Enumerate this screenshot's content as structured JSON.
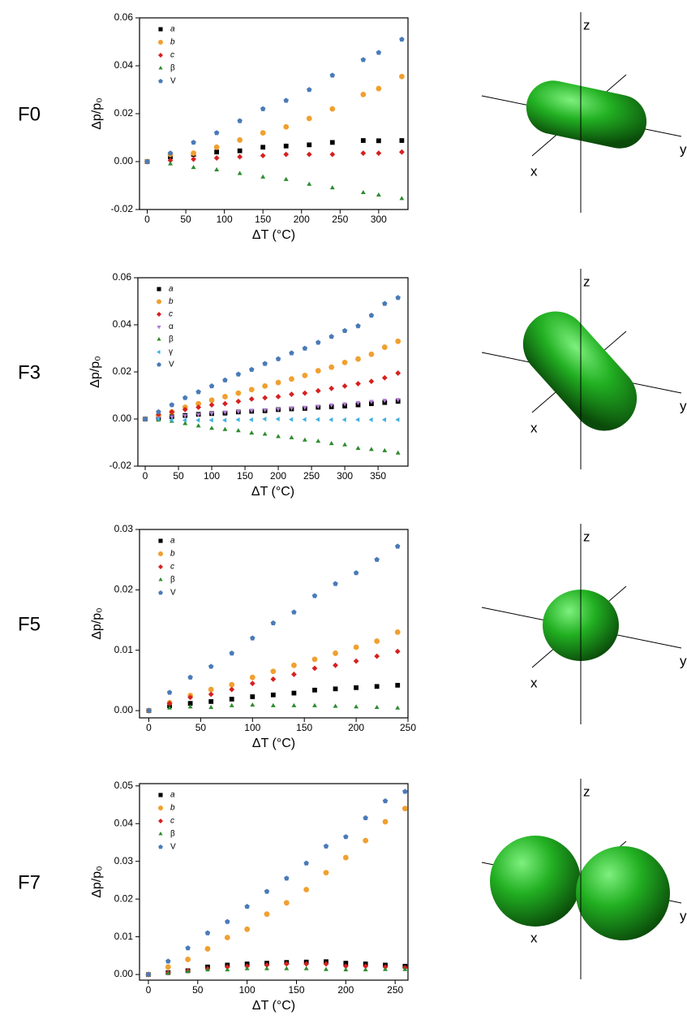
{
  "chart_data": [
    {
      "type": "scatter",
      "label": "F0",
      "xlabel": "ΔT (°C)",
      "ylabel": "Δp/p₀",
      "xlim": [
        -10,
        338
      ],
      "xticks": [
        0,
        50,
        100,
        150,
        200,
        250,
        300
      ],
      "ylim": [
        -0.02,
        0.06
      ],
      "yticks": [
        {
          "value": -0.02,
          "label": "-0.02"
        },
        {
          "value": 0,
          "label": "0.00"
        },
        {
          "value": 0.02,
          "label": "0.02"
        },
        {
          "value": 0.04,
          "label": "0.04"
        },
        {
          "value": 0.06,
          "label": "0.06"
        }
      ],
      "x": [
        0,
        30,
        60,
        90,
        120,
        150,
        180,
        210,
        240,
        280,
        300,
        330
      ],
      "series": [
        {
          "name": "a",
          "color": "#000000",
          "marker": "square",
          "values": [
            0,
            0.002,
            0.003,
            0.004,
            0.0045,
            0.006,
            0.0065,
            0.007,
            0.008,
            0.0088,
            0.0087,
            0.0088
          ]
        },
        {
          "name": "b",
          "color": "#f0a030",
          "marker": "circle",
          "values": [
            0,
            0.003,
            0.0035,
            0.006,
            0.009,
            0.012,
            0.0145,
            0.018,
            0.022,
            0.028,
            0.0305,
            0.0355
          ]
        },
        {
          "name": "c",
          "color": "#d62020",
          "marker": "diamond",
          "values": [
            0,
            0.0005,
            0.001,
            0.0015,
            0.002,
            0.0025,
            0.003,
            0.003,
            0.003,
            0.0035,
            0.0035,
            0.004
          ]
        },
        {
          "name": "β",
          "color": "#2e8b2e",
          "marker": "triangle-up",
          "values": [
            0,
            -0.001,
            -0.0025,
            -0.0035,
            -0.005,
            -0.0065,
            -0.0075,
            -0.0095,
            -0.011,
            -0.013,
            -0.014,
            -0.0155
          ]
        },
        {
          "name": "V",
          "color": "#4a7ab8",
          "marker": "pentagon",
          "values": [
            0,
            0.0035,
            0.008,
            0.012,
            0.017,
            0.022,
            0.0255,
            0.03,
            0.036,
            0.0425,
            0.0455,
            0.051
          ]
        }
      ]
    },
    {
      "type": "scatter",
      "label": "F3",
      "xlabel": "ΔT (°C)",
      "ylabel": "Δp/p₀",
      "xlim": [
        -11,
        395
      ],
      "xticks": [
        0,
        50,
        100,
        150,
        200,
        250,
        300,
        350
      ],
      "ylim": [
        -0.02,
        0.06
      ],
      "yticks": [
        {
          "value": -0.02,
          "label": "-0.02"
        },
        {
          "value": 0,
          "label": "0.00"
        },
        {
          "value": 0.02,
          "label": "0.02"
        },
        {
          "value": 0.04,
          "label": "0.04"
        },
        {
          "value": 0.06,
          "label": "0.06"
        }
      ],
      "x": [
        0,
        20,
        40,
        60,
        80,
        100,
        120,
        140,
        160,
        180,
        200,
        220,
        240,
        260,
        280,
        300,
        320,
        340,
        360,
        380
      ],
      "series": [
        {
          "name": "a",
          "color": "#000000",
          "marker": "square",
          "values": [
            0,
            0.0005,
            0.001,
            0.0015,
            0.002,
            0.0023,
            0.0025,
            0.003,
            0.0033,
            0.0035,
            0.004,
            0.0043,
            0.0045,
            0.005,
            0.0052,
            0.0055,
            0.006,
            0.0065,
            0.007,
            0.0075
          ]
        },
        {
          "name": "b",
          "color": "#f0a030",
          "marker": "circle",
          "values": [
            0,
            0.0015,
            0.003,
            0.005,
            0.0065,
            0.008,
            0.0095,
            0.011,
            0.0125,
            0.014,
            0.0155,
            0.017,
            0.0185,
            0.0205,
            0.022,
            0.024,
            0.0255,
            0.0275,
            0.0305,
            0.033
          ]
        },
        {
          "name": "c",
          "color": "#d62020",
          "marker": "diamond",
          "values": [
            0,
            0.002,
            0.003,
            0.004,
            0.005,
            0.006,
            0.0065,
            0.0075,
            0.0085,
            0.009,
            0.0095,
            0.0105,
            0.011,
            0.012,
            0.013,
            0.014,
            0.015,
            0.016,
            0.0175,
            0.0195
          ]
        },
        {
          "name": "α",
          "color": "#b07ad0",
          "marker": "triangle-down",
          "values": [
            0,
            0.0005,
            0.001,
            0.0015,
            0.002,
            0.0025,
            0.003,
            0.0033,
            0.0037,
            0.004,
            0.0043,
            0.0047,
            0.005,
            0.0055,
            0.006,
            0.0065,
            0.007,
            0.0075,
            0.008,
            0.0083
          ]
        },
        {
          "name": "β",
          "color": "#2e8b2e",
          "marker": "triangle-up",
          "values": [
            0,
            -0.0005,
            -0.001,
            -0.002,
            -0.003,
            -0.004,
            -0.0045,
            -0.005,
            -0.006,
            -0.0065,
            -0.0075,
            -0.008,
            -0.009,
            -0.0095,
            -0.0105,
            -0.011,
            -0.0125,
            -0.013,
            -0.0135,
            -0.0145
          ]
        },
        {
          "name": "γ",
          "color": "#3fb0e0",
          "marker": "triangle-left",
          "values": [
            0,
            0,
            -0.0005,
            -0.0005,
            -0.0005,
            -0.0005,
            -0.0005,
            -0.0003,
            -0.0003,
            0,
            0,
            -0.0002,
            -0.0002,
            -0.0002,
            -0.0003,
            -0.0003,
            -0.0003,
            -0.0003,
            -0.0003,
            -0.0003
          ]
        },
        {
          "name": "V",
          "color": "#4a7ab8",
          "marker": "pentagon",
          "values": [
            0,
            0.003,
            0.006,
            0.009,
            0.0115,
            0.014,
            0.0165,
            0.019,
            0.021,
            0.0235,
            0.0255,
            0.028,
            0.03,
            0.0325,
            0.035,
            0.0375,
            0.0395,
            0.044,
            0.049,
            0.0515
          ]
        }
      ]
    },
    {
      "type": "scatter",
      "label": "F5",
      "xlabel": "ΔT (°C)",
      "ylabel": "Δp/p₀",
      "xlim": [
        -9,
        250
      ],
      "xticks": [
        0,
        50,
        100,
        150,
        200,
        250
      ],
      "ylim": [
        -0.0012,
        0.03
      ],
      "yticks": [
        {
          "value": 0,
          "label": "0.00"
        },
        {
          "value": 0.01,
          "label": "0.01"
        },
        {
          "value": 0.02,
          "label": "0.02"
        },
        {
          "value": 0.03,
          "label": "0.03"
        }
      ],
      "x": [
        0,
        20,
        40,
        60,
        80,
        100,
        120,
        140,
        160,
        180,
        200,
        220,
        240
      ],
      "series": [
        {
          "name": "a",
          "color": "#000000",
          "marker": "square",
          "values": [
            0,
            0.0008,
            0.0012,
            0.0015,
            0.0019,
            0.0023,
            0.0026,
            0.0029,
            0.0034,
            0.0036,
            0.0038,
            0.004,
            0.0042
          ]
        },
        {
          "name": "b",
          "color": "#f0a030",
          "marker": "circle",
          "values": [
            0,
            0.0013,
            0.0025,
            0.0035,
            0.0043,
            0.0055,
            0.0065,
            0.0075,
            0.0085,
            0.0095,
            0.0105,
            0.0115,
            0.013
          ]
        },
        {
          "name": "c",
          "color": "#d62020",
          "marker": "diamond",
          "values": [
            0,
            0.0012,
            0.0022,
            0.0027,
            0.0035,
            0.0045,
            0.0052,
            0.006,
            0.007,
            0.0075,
            0.0082,
            0.009,
            0.0098
          ]
        },
        {
          "name": "β",
          "color": "#2e8b2e",
          "marker": "triangle-up",
          "values": [
            0,
            0.0004,
            0.0006,
            0.0005,
            0.0008,
            0.0009,
            0.0008,
            0.0008,
            0.0008,
            0.0007,
            0.0006,
            0.0005,
            0.0004
          ]
        },
        {
          "name": "V",
          "color": "#4a7ab8",
          "marker": "pentagon",
          "values": [
            0,
            0.003,
            0.0055,
            0.0073,
            0.0095,
            0.012,
            0.0145,
            0.0163,
            0.019,
            0.021,
            0.0228,
            0.025,
            0.0272
          ]
        }
      ]
    },
    {
      "type": "scatter",
      "label": "F7",
      "xlabel": "ΔT (°C)",
      "ylabel": "Δp/p₀",
      "xlim": [
        -9,
        263
      ],
      "xticks": [
        0,
        50,
        100,
        150,
        200,
        250
      ],
      "ylim": [
        -0.0015,
        0.0506
      ],
      "yticks": [
        {
          "value": 0,
          "label": "0.00"
        },
        {
          "value": 0.01,
          "label": "0.01"
        },
        {
          "value": 0.02,
          "label": "0.02"
        },
        {
          "value": 0.03,
          "label": "0.03"
        },
        {
          "value": 0.04,
          "label": "0.04"
        },
        {
          "value": 0.05,
          "label": "0.05"
        }
      ],
      "x": [
        0,
        20,
        40,
        60,
        80,
        100,
        120,
        140,
        160,
        180,
        200,
        220,
        240,
        260
      ],
      "series": [
        {
          "name": "a",
          "color": "#000000",
          "marker": "square",
          "values": [
            0,
            0.0005,
            0.001,
            0.002,
            0.0025,
            0.0028,
            0.003,
            0.0032,
            0.0033,
            0.0034,
            0.003,
            0.0028,
            0.0025,
            0.0022
          ]
        },
        {
          "name": "b",
          "color": "#f0a030",
          "marker": "circle",
          "values": [
            0,
            0.002,
            0.004,
            0.0068,
            0.0098,
            0.012,
            0.016,
            0.019,
            0.0225,
            0.027,
            0.031,
            0.0355,
            0.0405,
            0.044
          ]
        },
        {
          "name": "c",
          "color": "#d62020",
          "marker": "diamond",
          "values": [
            0,
            0.0005,
            0.001,
            0.0015,
            0.002,
            0.0022,
            0.0025,
            0.0028,
            0.0028,
            0.0028,
            0.0022,
            0.0022,
            0.002,
            0.0018
          ]
        },
        {
          "name": "β",
          "color": "#2e8b2e",
          "marker": "triangle-up",
          "values": [
            0,
            0.0003,
            0.0008,
            0.0012,
            0.0012,
            0.0015,
            0.0015,
            0.0015,
            0.0015,
            0.0013,
            0.0012,
            0.0012,
            0.0013,
            0.0013
          ]
        },
        {
          "name": "V",
          "color": "#4a7ab8",
          "marker": "pentagon",
          "values": [
            0,
            0.0035,
            0.007,
            0.011,
            0.014,
            0.018,
            0.022,
            0.0255,
            0.0295,
            0.034,
            0.0365,
            0.0415,
            0.046,
            0.0485
          ]
        }
      ]
    }
  ],
  "orientation_axes": {
    "x": "x",
    "y": "y",
    "z": "z"
  }
}
